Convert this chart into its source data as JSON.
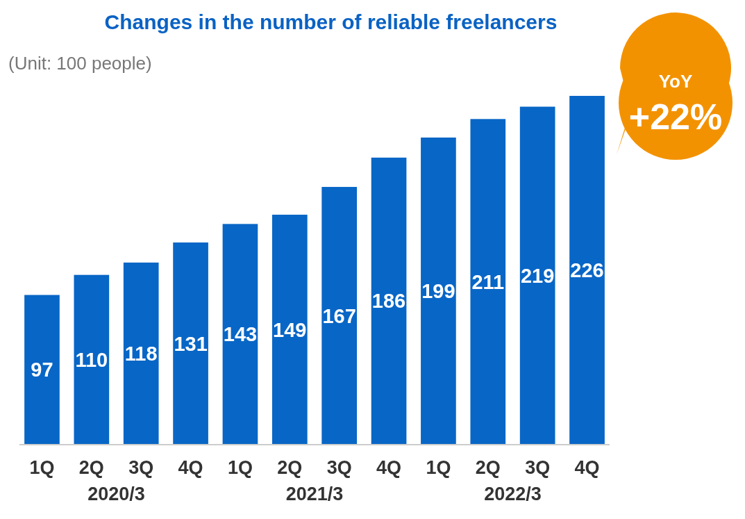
{
  "chart_data": {
    "type": "bar",
    "title": "Changes in the number of reliable freelancers",
    "categories": [
      "1Q",
      "2Q",
      "3Q",
      "4Q",
      "1Q",
      "2Q",
      "3Q",
      "4Q",
      "1Q",
      "2Q",
      "3Q",
      "4Q"
    ],
    "values": [
      97,
      110,
      118,
      131,
      143,
      149,
      167,
      186,
      199,
      211,
      219,
      226
    ],
    "color": "#0866c6",
    "data_labels": true,
    "annotations": [
      "(Unit: 100 people)",
      "2020/3",
      "2021/3",
      "2022/3",
      "YoY",
      "+22%"
    ]
  }
}
